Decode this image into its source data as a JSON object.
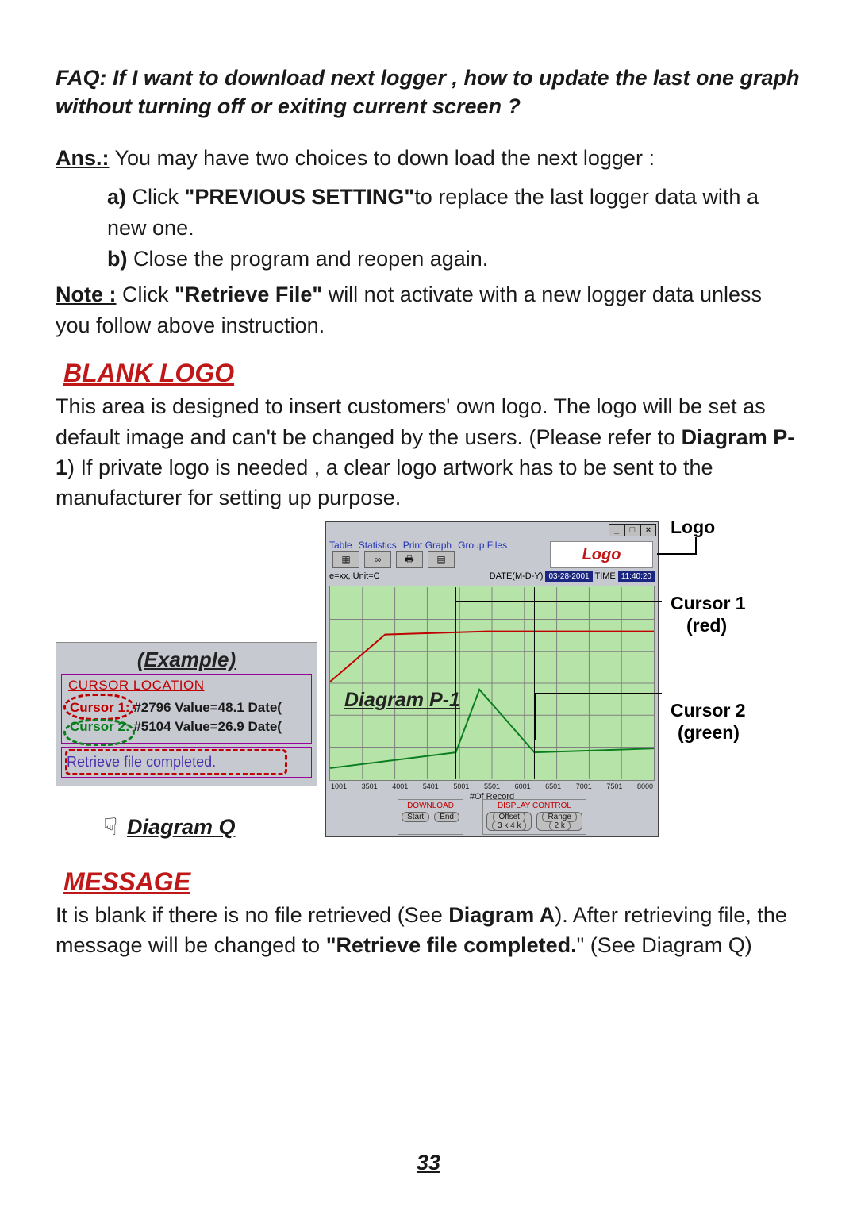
{
  "faq": {
    "label": "FAQ:",
    "question": "If I want to download next  logger , how to update the last one graph without turning off or exiting current  screen ?"
  },
  "answer": {
    "label": "Ans.:",
    "intro": "You may have two choices to down load the next logger :",
    "a_label": "a)",
    "a_pre": "Click ",
    "a_bold": "\"PREVIOUS SETTING\"",
    "a_post": "to replace the last logger data with a new one.",
    "b_label": "b)",
    "b_text": "Close the program and reopen again."
  },
  "note": {
    "label": "Note :",
    "pre": " Click ",
    "bold": "\"Retrieve File\"",
    "post": " will not activate with a new logger data unless you follow above instruction."
  },
  "blank_logo": {
    "heading": "BLANK LOGO",
    "body_pre": "This area is designed to insert customers' own logo. The logo will be set as default image and can't be changed by the users. (Please refer to ",
    "body_bold": "Diagram P-1",
    "body_post": ") If private logo is needed , a clear logo artwork has to be sent to the manufacturer for setting up purpose."
  },
  "diagram_q": {
    "example": "(Example)",
    "cursor_location_title": "CURSOR LOCATION",
    "c1_label": "Cursor 1:",
    "c1_text": "#2796 Value=48.1 Date(",
    "c2_label": "Cursor 2:",
    "c2_text": "#5104 Value=26.9 Date(",
    "msg": "Retrieve file completed.",
    "caption": "Diagram Q",
    "finger": "☟"
  },
  "diagram_p": {
    "menu": {
      "m1": "Table",
      "m2": "Statistics",
      "m3": "Print Graph",
      "m4": "Group Files"
    },
    "logo_text": "Logo",
    "unit_text": "e=xx, Unit=C",
    "date_label": "DATE(M-D-Y)",
    "date_value": "03-28-2001",
    "time_label": "TIME",
    "time_value": "11:40:20",
    "caption": "Diagram P-1",
    "xlabel": "#Of Record",
    "xticks": [
      "1001",
      "3501",
      "4001",
      "5401",
      "5001",
      "5501",
      "6001",
      "6501",
      "7001",
      "7501",
      "8000"
    ],
    "download_title": "DOWNLOAD",
    "start_btn": "Start",
    "end_btn": "End",
    "display_title": "DISPLAY CONTROL",
    "offset_label": "Offset",
    "offset_val": "3 k   4 k",
    "range_label": "Range",
    "range_val": "2 k",
    "chart": {
      "background": "#b6e3a8",
      "grid_color": "#808080",
      "line1_color": "#c00000",
      "line2_color": "#0a7d1e",
      "cursor_line_color": "#000000",
      "grid_xn": 10,
      "grid_yn": 6,
      "line1_points": [
        [
          0,
          120
        ],
        [
          70,
          60
        ],
        [
          200,
          56
        ],
        [
          412,
          56
        ]
      ],
      "line2_points": [
        [
          0,
          230
        ],
        [
          160,
          210
        ],
        [
          190,
          130
        ],
        [
          260,
          210
        ],
        [
          412,
          205
        ]
      ],
      "cursor1_x": 160,
      "cursor2_x": 260
    }
  },
  "callouts": {
    "logo": "Logo",
    "cursor1a": "Cursor 1",
    "cursor1b": "(red)",
    "cursor2a": "Cursor 2",
    "cursor2b": "(green)"
  },
  "message": {
    "heading": "MESSAGE",
    "pre": "It is blank if there is no file retrieved (See ",
    "bold1": "Diagram A",
    "mid": "). After retrieving file, the message will be changed to ",
    "bold2": "\"Retrieve file completed.",
    "post": "\" (See Diagram Q)"
  },
  "page_number": "33"
}
